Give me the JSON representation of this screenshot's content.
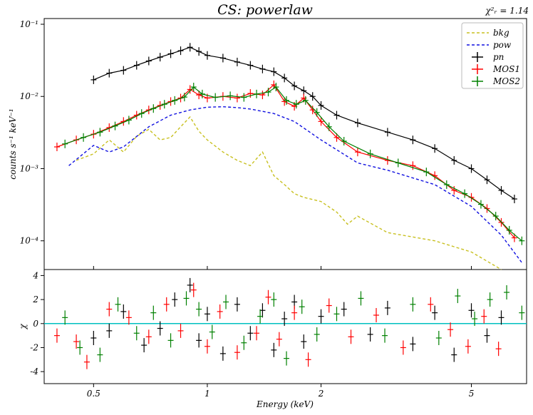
{
  "title": "CS: powerlaw",
  "stat_label": "χ²ᵣ = 1.14",
  "chart_data": [
    {
      "type": "line",
      "panel": "spectrum",
      "ylabel": "counts s⁻¹ keV⁻¹",
      "xscale": "log",
      "yscale": "log",
      "xlim": [
        0.37,
        7.0
      ],
      "ylim": [
        4e-05,
        0.12
      ],
      "y_ticks": [
        {
          "value": 0.1,
          "label": "10⁻¹"
        },
        {
          "value": 0.01,
          "label": "10⁻²"
        },
        {
          "value": 0.001,
          "label": "10⁻³"
        },
        {
          "value": 0.0001,
          "label": "10⁻⁴"
        }
      ],
      "legend_position": "top-right",
      "series": [
        {
          "name": "bkg",
          "style": "dashed",
          "color": "#c8c020",
          "x": [
            0.45,
            0.5,
            0.55,
            0.6,
            0.65,
            0.7,
            0.75,
            0.8,
            0.85,
            0.9,
            0.95,
            1.0,
            1.1,
            1.2,
            1.3,
            1.4,
            1.5,
            1.6,
            1.7,
            1.8,
            2.0,
            2.2,
            2.35,
            2.5,
            3.0,
            4.0,
            5.0,
            6.0
          ],
          "y": [
            0.0013,
            0.0016,
            0.0025,
            0.0017,
            0.0028,
            0.0035,
            0.0025,
            0.0027,
            0.0038,
            0.0052,
            0.0033,
            0.0025,
            0.0017,
            0.0013,
            0.0011,
            0.0017,
            0.0008,
            0.0006,
            0.00045,
            0.0004,
            0.00035,
            0.00025,
            0.00017,
            0.00022,
            0.00013,
            0.0001,
            7e-05,
            4e-05
          ]
        },
        {
          "name": "pow",
          "style": "dashed",
          "color": "#1010e0",
          "x": [
            0.43,
            0.5,
            0.55,
            0.6,
            0.7,
            0.8,
            0.9,
            1.0,
            1.1,
            1.2,
            1.3,
            1.5,
            1.7,
            2.0,
            2.5,
            3.0,
            4.0,
            5.0,
            6.0,
            6.8
          ],
          "y": [
            0.0011,
            0.0021,
            0.0017,
            0.002,
            0.0038,
            0.0055,
            0.0065,
            0.0071,
            0.0072,
            0.007,
            0.0067,
            0.0058,
            0.0045,
            0.0025,
            0.0012,
            0.00095,
            0.0006,
            0.0003,
            0.00012,
            5e-05
          ]
        },
        {
          "name": "pn",
          "style": "errorbar",
          "color": "#000000",
          "x": [
            0.5,
            0.55,
            0.6,
            0.65,
            0.7,
            0.75,
            0.8,
            0.85,
            0.9,
            0.95,
            1.0,
            1.1,
            1.2,
            1.3,
            1.4,
            1.5,
            1.6,
            1.7,
            1.8,
            1.9,
            2.0,
            2.2,
            2.5,
            3.0,
            3.5,
            4.0,
            4.5,
            5.0,
            5.5,
            6.0,
            6.5
          ],
          "y": [
            0.017,
            0.021,
            0.023,
            0.027,
            0.031,
            0.035,
            0.039,
            0.043,
            0.048,
            0.042,
            0.037,
            0.034,
            0.03,
            0.027,
            0.024,
            0.022,
            0.018,
            0.014,
            0.012,
            0.01,
            0.0075,
            0.0055,
            0.0043,
            0.0032,
            0.0025,
            0.0019,
            0.0013,
            0.001,
            0.0007,
            0.0005,
            0.00038
          ]
        },
        {
          "name": "MOS1",
          "style": "errorbar",
          "color": "#ff0000",
          "x": [
            0.4,
            0.45,
            0.5,
            0.55,
            0.6,
            0.65,
            0.7,
            0.75,
            0.8,
            0.85,
            0.9,
            0.95,
            1.0,
            1.1,
            1.2,
            1.3,
            1.4,
            1.5,
            1.6,
            1.7,
            1.8,
            1.9,
            2.0,
            2.2,
            2.5,
            3.0,
            3.5,
            4.0,
            4.5,
            5.0,
            5.5,
            6.0,
            6.5
          ],
          "y": [
            0.002,
            0.0025,
            0.003,
            0.0037,
            0.0045,
            0.0055,
            0.0065,
            0.0075,
            0.0085,
            0.0095,
            0.0125,
            0.0105,
            0.0095,
            0.01,
            0.0095,
            0.011,
            0.0105,
            0.0145,
            0.0085,
            0.0073,
            0.0095,
            0.0065,
            0.0045,
            0.0027,
            0.0017,
            0.0013,
            0.0011,
            0.0008,
            0.0005,
            0.0004,
            0.00028,
            0.00018,
            0.00011
          ]
        },
        {
          "name": "MOS2",
          "style": "errorbar",
          "color": "#008000",
          "x": [
            0.42,
            0.47,
            0.52,
            0.57,
            0.62,
            0.67,
            0.72,
            0.77,
            0.82,
            0.87,
            0.92,
            0.97,
            1.05,
            1.15,
            1.25,
            1.35,
            1.45,
            1.52,
            1.62,
            1.72,
            1.82,
            1.95,
            2.1,
            2.3,
            2.7,
            3.2,
            3.8,
            4.3,
            4.8,
            5.3,
            5.8,
            6.3,
            6.8
          ],
          "y": [
            0.0022,
            0.0027,
            0.0032,
            0.0039,
            0.0047,
            0.0058,
            0.0068,
            0.0078,
            0.0088,
            0.0098,
            0.0135,
            0.0108,
            0.0097,
            0.0102,
            0.0097,
            0.0108,
            0.0115,
            0.0135,
            0.0088,
            0.0078,
            0.0088,
            0.006,
            0.0038,
            0.0024,
            0.0016,
            0.0012,
            0.0009,
            0.0006,
            0.00045,
            0.00032,
            0.00022,
            0.00014,
            0.0001
          ]
        }
      ]
    },
    {
      "type": "scatter",
      "panel": "residuals",
      "xlabel": "Energy (keV)",
      "ylabel": "χ",
      "xscale": "log",
      "xlim": [
        0.37,
        7.0
      ],
      "ylim": [
        -5,
        4.5
      ],
      "x_ticks": [
        0.5,
        1,
        2,
        5
      ],
      "y_ticks": [
        4,
        2,
        0,
        -2,
        -4
      ],
      "series": [
        {
          "name": "pn",
          "color": "#000000",
          "x": [
            0.5,
            0.55,
            0.6,
            0.68,
            0.75,
            0.82,
            0.9,
            0.95,
            1.0,
            1.1,
            1.2,
            1.3,
            1.4,
            1.5,
            1.6,
            1.7,
            1.8,
            2.0,
            2.3,
            2.7,
            3.0,
            3.5,
            4.0,
            4.5,
            5.0,
            5.5,
            6.0
          ],
          "y": [
            -1.2,
            -0.6,
            1.0,
            -1.8,
            -0.4,
            2.0,
            3.2,
            -1.4,
            0.8,
            -2.5,
            1.6,
            -0.8,
            1.1,
            -2.2,
            0.4,
            1.8,
            -1.5,
            0.6,
            1.2,
            -0.9,
            1.3,
            -1.7,
            0.9,
            -2.6,
            1.1,
            -1.0,
            0.5
          ]
        },
        {
          "name": "MOS1",
          "color": "#ff0000",
          "x": [
            0.4,
            0.45,
            0.48,
            0.55,
            0.62,
            0.7,
            0.78,
            0.85,
            0.92,
            1.0,
            1.08,
            1.2,
            1.35,
            1.45,
            1.55,
            1.7,
            1.85,
            2.1,
            2.4,
            2.8,
            3.3,
            3.9,
            4.4,
            4.9,
            5.4,
            5.9
          ],
          "y": [
            -1.0,
            -1.5,
            -3.2,
            1.2,
            0.5,
            -1.1,
            1.6,
            -0.6,
            2.8,
            -1.9,
            1.0,
            -2.4,
            -0.8,
            2.2,
            -1.3,
            0.9,
            -3.0,
            1.5,
            -1.1,
            0.7,
            -2.0,
            1.6,
            -0.5,
            -1.9,
            0.6,
            -2.1
          ]
        },
        {
          "name": "MOS2",
          "color": "#008000",
          "x": [
            0.42,
            0.46,
            0.52,
            0.58,
            0.65,
            0.72,
            0.8,
            0.88,
            0.95,
            1.03,
            1.12,
            1.25,
            1.38,
            1.5,
            1.62,
            1.78,
            1.95,
            2.2,
            2.55,
            2.95,
            3.5,
            4.1,
            4.6,
            5.1,
            5.6,
            6.2,
            6.8
          ],
          "y": [
            0.5,
            -2.0,
            -2.6,
            1.6,
            -0.8,
            0.9,
            -1.4,
            2.1,
            1.2,
            -0.7,
            1.8,
            -1.6,
            0.6,
            2.0,
            -2.9,
            1.4,
            -0.9,
            0.8,
            2.1,
            -1.0,
            1.6,
            -1.2,
            2.3,
            0.4,
            2.0,
            2.6,
            0.9
          ]
        }
      ]
    }
  ]
}
